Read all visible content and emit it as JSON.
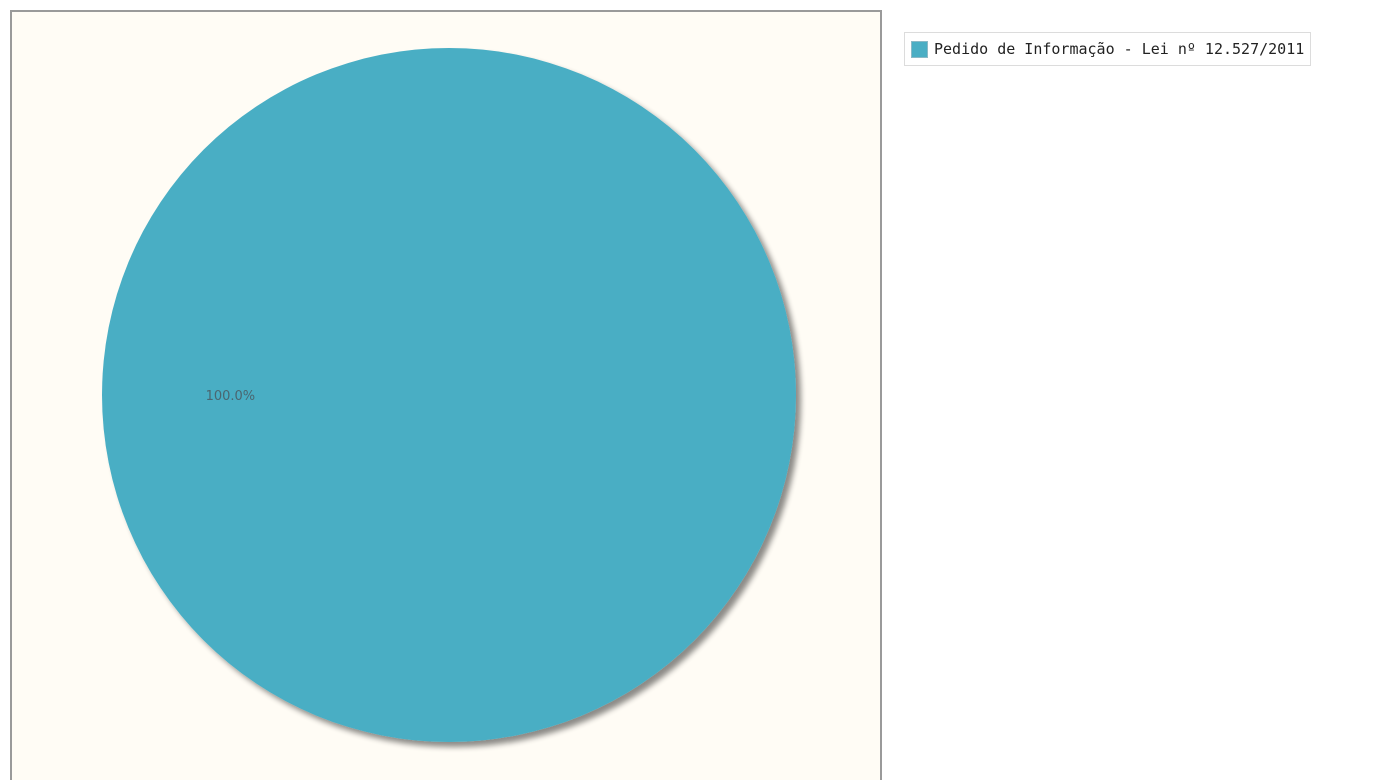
{
  "chart_data": {
    "type": "pie",
    "title": "",
    "slices": [
      {
        "name": "Pedido de Informação - Lei nº 12.527/2011",
        "value": 100.0,
        "label": "100.0%",
        "color": "#4aaec4"
      }
    ],
    "legend": {
      "position": "top-right",
      "items": [
        "Pedido de Informação - Lei nº 12.527/2011"
      ]
    },
    "plot_background": "#fffcf5",
    "shadow": true
  }
}
